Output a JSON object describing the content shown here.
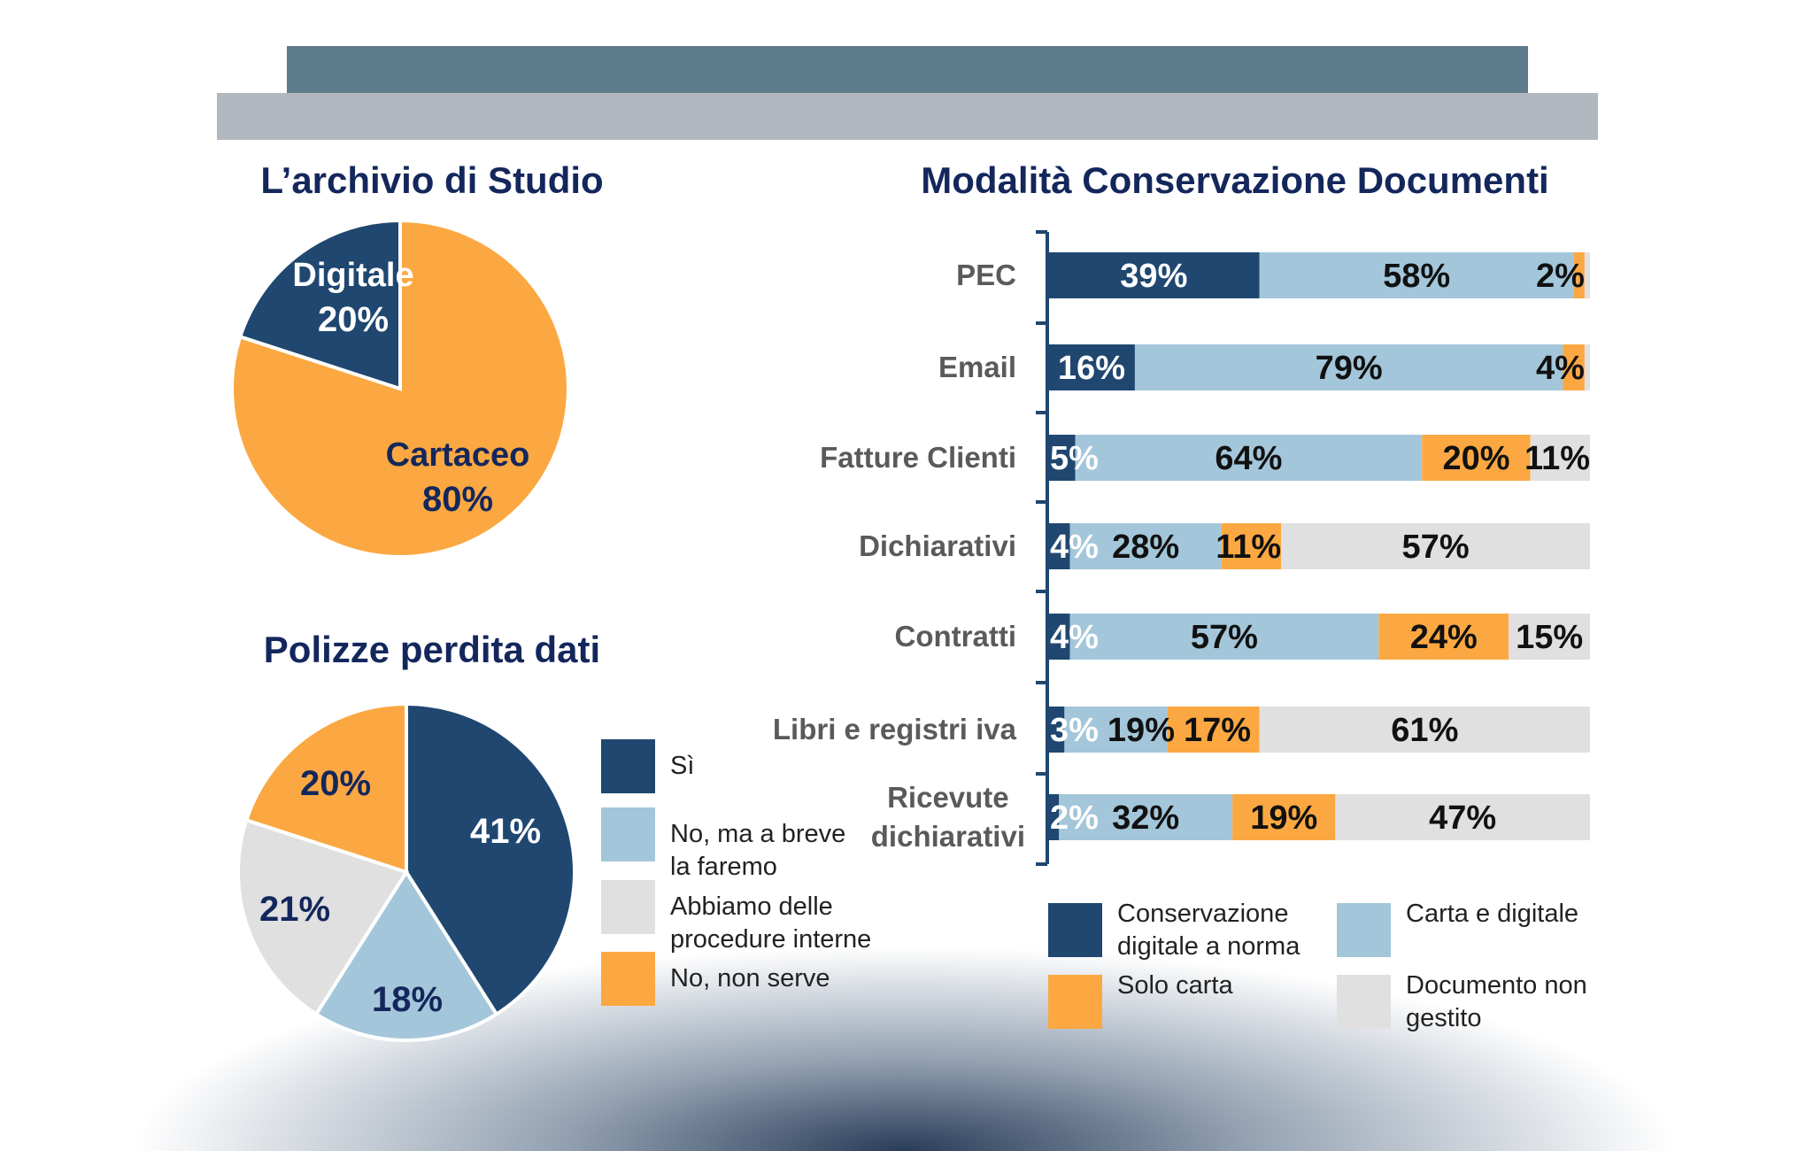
{
  "colors": {
    "dark": "#1f4770",
    "light": "#a3c6da",
    "orange": "#fba842",
    "gray": "#e0e0e0",
    "navy": "#14275c"
  },
  "chart_data": [
    {
      "type": "pie",
      "title": "L’archivio di Studio",
      "slices": [
        {
          "name": "Digitale",
          "value": 20,
          "label": "20%",
          "color": "#1f4770"
        },
        {
          "name": "Cartaceo",
          "value": 80,
          "label": "80%",
          "color": "#fba842"
        }
      ]
    },
    {
      "type": "pie",
      "title": "Polizze perdita dati",
      "slices": [
        {
          "name": "Sì",
          "value": 41,
          "label": "41%",
          "color": "#1f4770"
        },
        {
          "name": "No, ma a breve la faremo",
          "value": 18,
          "label": "18%",
          "color": "#a3c6da"
        },
        {
          "name": "Abbiamo delle procedure interne",
          "value": 21,
          "label": "21%",
          "color": "#e0e0e0"
        },
        {
          "name": "No, non serve",
          "value": 20,
          "label": "20%",
          "color": "#fba842"
        }
      ],
      "legend": [
        "Sì",
        "No, ma a breve\nla faremo",
        "Abbiamo delle\nprocedure interne",
        "No, non serve"
      ]
    },
    {
      "type": "bar",
      "orientation": "horizontal",
      "stacked": true,
      "title": "Modalità Conservazione Documenti",
      "categories": [
        "PEC",
        "Email",
        "Fatture Clienti",
        "Dichiarativi",
        "Contratti",
        "Libri e registri iva",
        "Ricevute\ndichiarativi"
      ],
      "series": [
        {
          "name": "Conservazione\ndigitale a norma",
          "color": "#1f4770",
          "values": [
            39,
            16,
            5,
            4,
            4,
            3,
            2
          ]
        },
        {
          "name": "Carta e digitale",
          "color": "#a3c6da",
          "values": [
            58,
            79,
            64,
            28,
            57,
            19,
            32
          ]
        },
        {
          "name": "Solo carta",
          "color": "#fba842",
          "values": [
            2,
            4,
            20,
            11,
            24,
            17,
            19
          ]
        },
        {
          "name": "Documento non\ngestito",
          "color": "#e0e0e0",
          "values": [
            1,
            1,
            11,
            57,
            15,
            61,
            47
          ]
        }
      ],
      "legend_order": [
        0,
        1,
        2,
        3
      ],
      "xlim": [
        0,
        100
      ]
    }
  ]
}
